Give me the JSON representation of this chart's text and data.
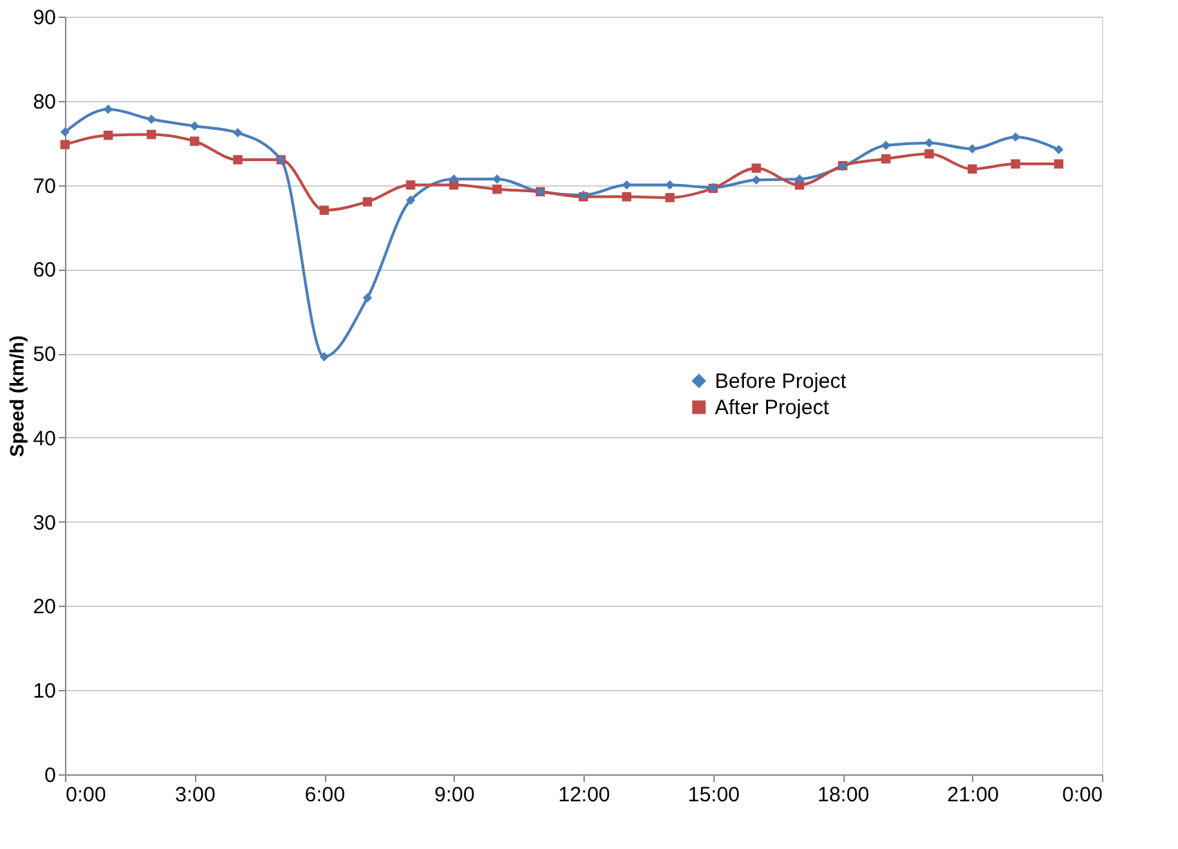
{
  "chart_data": {
    "type": "line",
    "ylabel": "Speed (km/h)",
    "x": [
      0,
      1,
      2,
      3,
      4,
      5,
      6,
      7,
      8,
      9,
      10,
      11,
      12,
      13,
      14,
      15,
      16,
      17,
      18,
      19,
      20,
      21,
      22,
      23
    ],
    "series": [
      {
        "name": "Before Project",
        "color": "#4a7ebb",
        "marker": "diamond",
        "values": [
          76.3,
          79,
          77.8,
          77,
          76.2,
          73,
          49.6,
          56.6,
          68.2,
          70.7,
          70.7,
          69.2,
          68.8,
          70,
          70,
          69.7,
          70.6,
          70.7,
          72.2,
          74.7,
          75,
          74.3,
          75.7,
          74.2
        ]
      },
      {
        "name": "After Project",
        "color": "#be4b48",
        "marker": "square",
        "values": [
          74.8,
          75.9,
          76,
          75.2,
          73,
          73,
          67,
          68,
          70,
          70,
          69.5,
          69.2,
          68.6,
          68.6,
          68.5,
          69.6,
          72,
          70,
          72.3,
          73.1,
          73.7,
          71.9,
          72.5,
          72.5
        ]
      }
    ],
    "xlim": [
      0,
      24
    ],
    "xticks": [
      {
        "value": 0,
        "label": "0:00"
      },
      {
        "value": 3,
        "label": "3:00"
      },
      {
        "value": 6,
        "label": "6:00"
      },
      {
        "value": 9,
        "label": "9:00"
      },
      {
        "value": 12,
        "label": "12:00"
      },
      {
        "value": 15,
        "label": "15:00"
      },
      {
        "value": 18,
        "label": "18:00"
      },
      {
        "value": 21,
        "label": "21:00"
      },
      {
        "value": 24,
        "label": "0:00"
      }
    ],
    "ylim": [
      0,
      90
    ],
    "yticks": [
      0,
      10,
      20,
      30,
      40,
      50,
      60,
      70,
      80,
      90
    ],
    "grid": "y",
    "legend": "right",
    "line_style": "solid"
  }
}
